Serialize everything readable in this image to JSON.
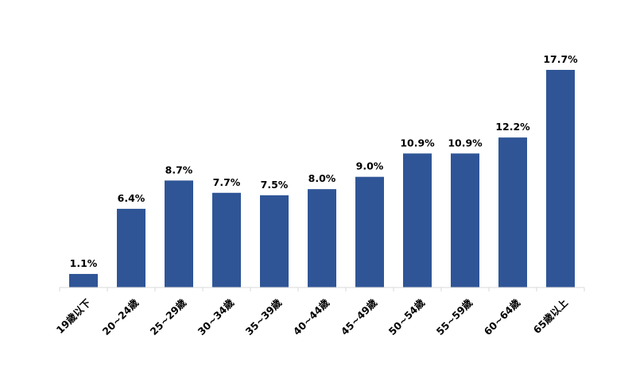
{
  "chart_data": {
    "type": "bar",
    "categories": [
      "19歳以下",
      "20~24歳",
      "25~29歳",
      "30~34歳",
      "35~39歳",
      "40~44歳",
      "45~49歳",
      "50~54歳",
      "55~59歳",
      "60~64歳",
      "65歳以上"
    ],
    "values": [
      1.1,
      6.4,
      8.7,
      7.7,
      7.5,
      8.0,
      9.0,
      10.9,
      10.9,
      12.2,
      17.7
    ],
    "value_labels": [
      "1.1%",
      "6.4%",
      "8.7%",
      "7.7%",
      "7.5%",
      "8.0%",
      "9.0%",
      "10.9%",
      "10.9%",
      "12.2%",
      "17.7%"
    ],
    "ylim": [
      0,
      17.7
    ],
    "grid": false,
    "legend": "none",
    "colors": {
      "bar": "#2f5597"
    }
  }
}
